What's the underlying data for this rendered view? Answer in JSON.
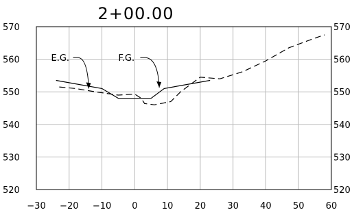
{
  "chart_data": {
    "type": "line",
    "title": "2+00.00",
    "xlabel": "",
    "ylabel": "",
    "xlim": [
      -30,
      60
    ],
    "ylim": [
      520,
      570
    ],
    "x_ticks": [
      "−30",
      "−20",
      "−10",
      "0",
      "10",
      "20",
      "30",
      "40",
      "50",
      "60"
    ],
    "x_tick_values": [
      -30,
      -20,
      -10,
      0,
      10,
      20,
      30,
      40,
      50,
      60
    ],
    "y_ticks": [
      "570",
      "560",
      "550",
      "540",
      "530",
      "520"
    ],
    "y_tick_values": [
      570,
      560,
      550,
      540,
      530,
      520
    ],
    "y_ticks_right": true,
    "grid": true,
    "series": [
      {
        "name": "E.G.",
        "style": "dashed",
        "x": [
          -23,
          -18,
          -12,
          -5,
          0,
          2,
          3,
          6,
          11,
          14,
          20,
          26,
          33,
          40,
          47,
          55,
          58
        ],
        "y": [
          551.5,
          551,
          550,
          549,
          549.3,
          548,
          546.4,
          546,
          547,
          550,
          554.5,
          554,
          556.2,
          559.5,
          563.5,
          566.5,
          567.5
        ]
      },
      {
        "name": "F.G.",
        "style": "solid",
        "x": [
          -24,
          -10,
          -5,
          5,
          9,
          23
        ],
        "y": [
          553.5,
          551,
          548,
          548,
          551,
          553.5
        ]
      }
    ],
    "annotations": [
      {
        "text": "E.G.",
        "x": -25.5,
        "y": 560.5,
        "arrow_to": [
          -14,
          551
        ]
      },
      {
        "text": "F.G.",
        "x": -5,
        "y": 560.5,
        "arrow_to": [
          7.5,
          551.3
        ]
      }
    ]
  },
  "colors": {
    "line": "#000000",
    "grid": "#bbbbbb",
    "background": "#ffffff"
  }
}
